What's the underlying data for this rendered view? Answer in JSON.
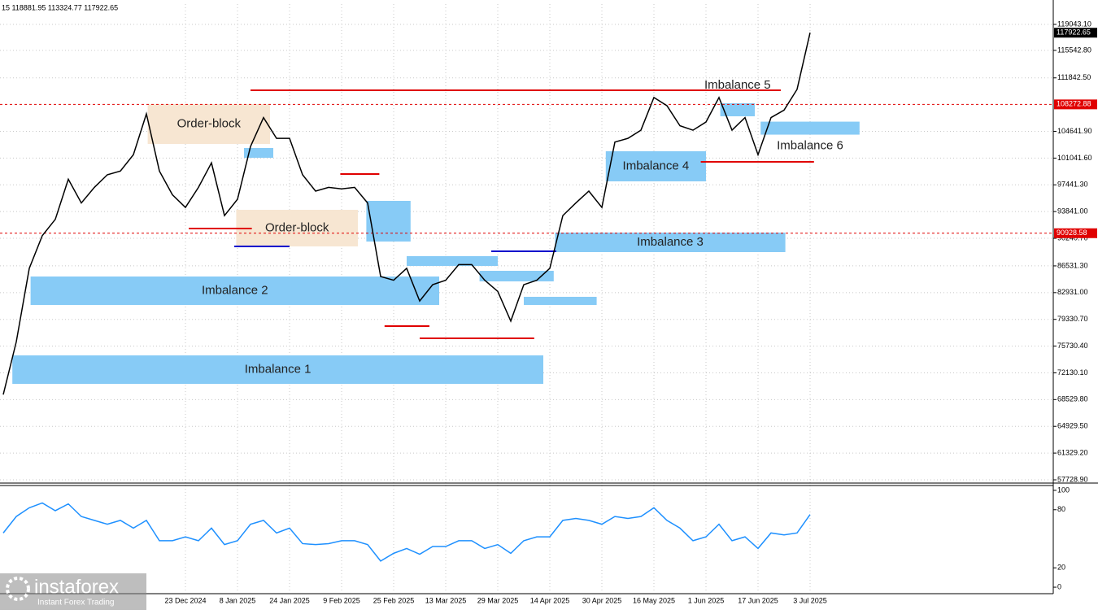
{
  "chart_data": [
    {
      "type": "line",
      "title": "15 118881.95 113324.77 117922.65",
      "categories": [
        null,
        null,
        null,
        null,
        null,
        null,
        null,
        null,
        null,
        null,
        null,
        null,
        null,
        null,
        "23 Dec 2024",
        null,
        null,
        null,
        "8 Jan 2025",
        null,
        null,
        null,
        "24 Jan 2025",
        null,
        null,
        null,
        "9 Feb 2025",
        null,
        null,
        null,
        "25 Feb 2025",
        null,
        null,
        null,
        "13 Mar 2025",
        null,
        null,
        null,
        "29 Mar 2025",
        null,
        null,
        null,
        "14 Apr 2025",
        null,
        null,
        null,
        "30 Apr 2025",
        null,
        null,
        null,
        "16 May 2025",
        null,
        null,
        null,
        "1 Jun 2025",
        null,
        null,
        null,
        "17 Jun 2025",
        null,
        null,
        null,
        "3 Jul 2025"
      ],
      "values": [
        69200,
        76300,
        86200,
        90600,
        92800,
        98200,
        95000,
        97100,
        98800,
        99300,
        101500,
        107000,
        99300,
        96100,
        94400,
        97100,
        100400,
        93300,
        95500,
        102600,
        106500,
        103700,
        103700,
        98800,
        96600,
        97100,
        96900,
        97100,
        95000,
        85100,
        84600,
        86200,
        81800,
        84000,
        84600,
        86700,
        86700,
        84600,
        83100,
        79100,
        84000,
        84600,
        86200,
        93300,
        95000,
        96600,
        94400,
        103200,
        103700,
        104800,
        109200,
        108100,
        105400,
        104800,
        105900,
        109200,
        104800,
        106500,
        101500,
        106500,
        107500,
        110300,
        117922.65
      ],
      "color": "#000000",
      "ylim": [
        57400,
        121780
      ],
      "yticks": [
        {
          "value": 119043.1,
          "label": "119043.10"
        },
        {
          "value": 115542.8,
          "label": "115542.80"
        },
        {
          "value": 111842.5,
          "label": "111842.50"
        },
        {
          "value": 104641.9,
          "label": "104641.90"
        },
        {
          "value": 101041.6,
          "label": "101041.60"
        },
        {
          "value": 97441.3,
          "label": "97441.30"
        },
        {
          "value": 93841,
          "label": "93841.00"
        },
        {
          "value": 90240.7,
          "label": "90240.70"
        },
        {
          "value": 86531.3,
          "label": "86531.30"
        },
        {
          "value": 82931,
          "label": "82931.00"
        },
        {
          "value": 79330.7,
          "label": "79330.70"
        },
        {
          "value": 75730.4,
          "label": "75730.40"
        },
        {
          "value": 72130.1,
          "label": "72130.10"
        },
        {
          "value": 68529.8,
          "label": "68529.80"
        },
        {
          "value": 64929.5,
          "label": "64929.50"
        },
        {
          "value": 61329.2,
          "label": "61329.20"
        },
        {
          "value": 57728.9,
          "label": "57728.90"
        }
      ],
      "grid": true,
      "zones": [
        {
          "label": "Imbalance 1",
          "start": 0.7,
          "end": 41.5,
          "low": 70648,
          "high": 74481,
          "color": "#87cbf6",
          "label_side": "center"
        },
        {
          "label": "Imbalance 2",
          "start": 2.1,
          "end": 33.5,
          "low": 81270,
          "high": 85101,
          "color": "#87cbf6",
          "label_side": "center"
        },
        {
          "label": "Imbalance 3",
          "start": 42.4,
          "end": 60.1,
          "low": 88386,
          "high": 91013,
          "color": "#87cbf6",
          "label_side": "center"
        },
        {
          "label": "Imbalance 4",
          "start": 46.3,
          "end": 54,
          "low": 97911,
          "high": 101963,
          "color": "#87cbf6",
          "label_side": "center"
        },
        {
          "label": "Imbalance 5",
          "start": 55.1,
          "end": 57.75,
          "low": 106671,
          "high": 108423,
          "color": "#87cbf6",
          "label_side": "above"
        },
        {
          "label": "Imbalance 6",
          "start": 58.2,
          "end": 65.8,
          "low": 104200,
          "high": 105950,
          "color": "#87cbf6",
          "label_side": "below"
        },
        {
          "label": "Order-block",
          "start": 11.1,
          "end": 20.5,
          "low": 102948,
          "high": 108313,
          "color": "#f7e6d2",
          "label_side": "center"
        },
        {
          "label": "Order-block",
          "start": 17.9,
          "end": 27.25,
          "low": 89152,
          "high": 94080,
          "color": "#f7e6d2",
          "label_side": "center"
        },
        {
          "start": 18.5,
          "end": 20.75,
          "low": 101087,
          "high": 102400,
          "color": "#87cbf6"
        },
        {
          "start": 27.9,
          "end": 31.3,
          "low": 89809,
          "high": 95284,
          "color": "#87cbf6"
        },
        {
          "start": 31,
          "end": 38,
          "low": 86524,
          "high": 87838,
          "color": "#87cbf6"
        },
        {
          "start": 36.6,
          "end": 42.3,
          "low": 84445,
          "high": 85868,
          "color": "#87cbf6"
        },
        {
          "start": 40,
          "end": 45.6,
          "low": 81270,
          "high": 82365,
          "color": "#87cbf6"
        }
      ],
      "levels": [
        {
          "value": 110174,
          "start": 19,
          "end": 59.75,
          "color": "#e00000"
        },
        {
          "value": 98898,
          "start": 25.9,
          "end": 28.9,
          "color": "#e00000"
        },
        {
          "value": 78422,
          "start": 29.3,
          "end": 32.75,
          "color": "#e00000"
        },
        {
          "value": 76780,
          "start": 32,
          "end": 40.8,
          "color": "#e00000"
        },
        {
          "value": 100539,
          "start": 53.6,
          "end": 62.3,
          "color": "#e00000"
        },
        {
          "value": 91561,
          "start": 14.25,
          "end": 19.1,
          "color": "#e00000"
        },
        {
          "value": 89152,
          "start": 17.75,
          "end": 22,
          "color": "#0000cc"
        },
        {
          "value": 88495,
          "start": 37.5,
          "end": 42.5,
          "color": "#0000cc"
        }
      ],
      "dashed_levels": [
        {
          "value": 108272.88,
          "color": "#e00000"
        },
        {
          "value": 90928.58,
          "color": "#e00000"
        }
      ],
      "last_price": 117922.65
    },
    {
      "type": "line",
      "values": [
        56,
        73,
        82,
        87,
        79,
        86,
        73,
        69,
        65,
        69,
        61,
        69,
        48,
        48,
        52,
        48,
        61,
        44,
        48,
        65,
        69,
        56,
        61,
        45,
        44,
        45,
        48,
        48,
        44,
        27,
        35,
        40,
        34,
        42,
        42,
        48,
        48,
        40,
        44,
        35,
        48,
        52,
        52,
        69,
        71,
        69,
        65,
        73,
        71,
        73,
        82,
        69,
        61,
        48,
        52,
        65,
        48,
        52,
        40,
        56,
        54,
        56,
        75
      ],
      "color": "#1e90ff",
      "ylim": [
        -5,
        105
      ],
      "yticks": [
        100,
        80,
        20,
        0
      ]
    }
  ],
  "watermark": {
    "brand": "instaforex",
    "tagline": "Instant Forex Trading"
  }
}
